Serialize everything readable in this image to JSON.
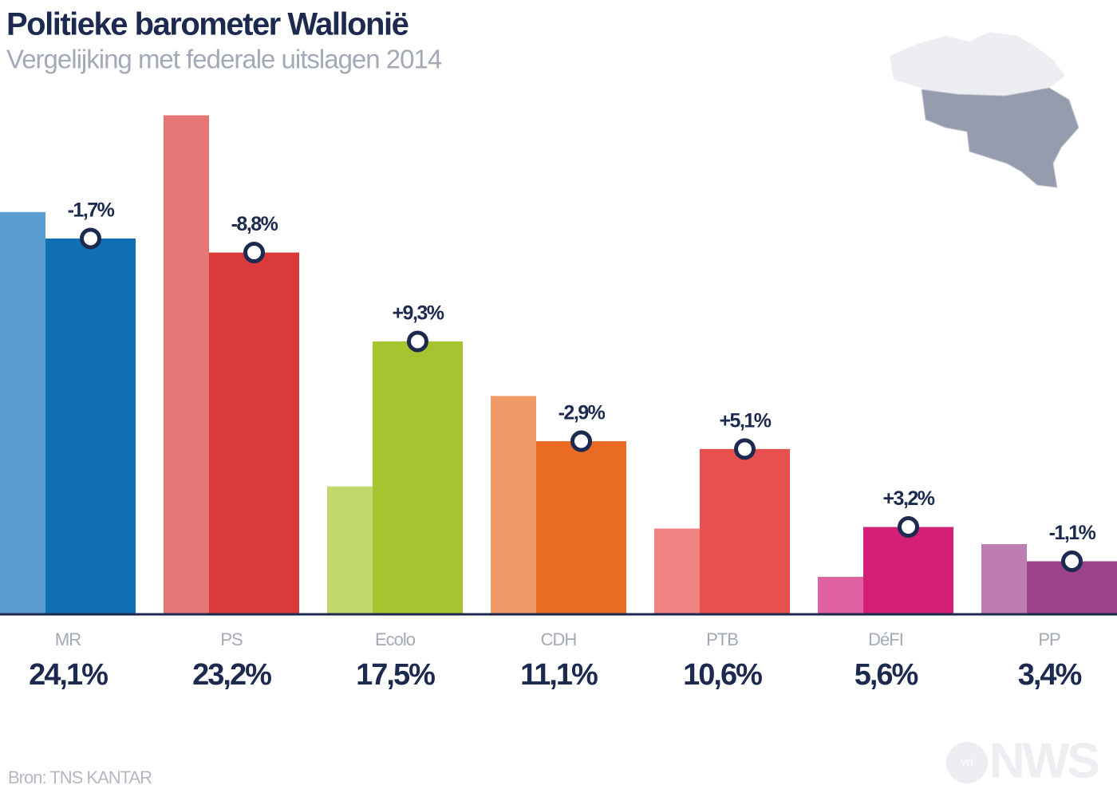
{
  "chart_data": {
    "type": "bar",
    "title": "Politieke barometer Wallonië",
    "subtitle": "Vergelijking met federale uitslagen 2014",
    "source": "Bron: TNS KANTAR",
    "logo": {
      "small": "vrt",
      "big": "NWS"
    },
    "categories": [
      "MR",
      "PS",
      "Ecolo",
      "CDH",
      "PTB",
      "DéFI",
      "PP"
    ],
    "series": [
      {
        "values": [
          25.8,
          32.0,
          8.2,
          14.0,
          5.5,
          2.4,
          4.5
        ],
        "colors": [
          "#5b9dd0",
          "#e67575",
          "#c1d86c",
          "#f29a67",
          "#f08282",
          "#e062a2",
          "#bd7db2"
        ]
      },
      {
        "values": [
          24.1,
          23.2,
          17.5,
          11.1,
          10.6,
          5.6,
          3.4
        ],
        "value_labels": [
          "24,1%",
          "23,2%",
          "17,5%",
          "11,1%",
          "10,6%",
          "5,6%",
          "3,4%"
        ],
        "colors": [
          "#1170b5",
          "#db3a3b",
          "#a6c42f",
          "#e96b24",
          "#e84f4f",
          "#d31f76",
          "#9b4289"
        ]
      }
    ],
    "changes": {
      "values": [
        -1.7,
        -8.8,
        9.3,
        -2.9,
        5.1,
        3.2,
        -1.1
      ],
      "value_labels": [
        "-1,7%",
        "-8,8%",
        "+9,3%",
        "-2,9%",
        "+5,1%",
        "+3,2%",
        "-1,1%"
      ]
    },
    "ylim": [
      0,
      33
    ]
  }
}
